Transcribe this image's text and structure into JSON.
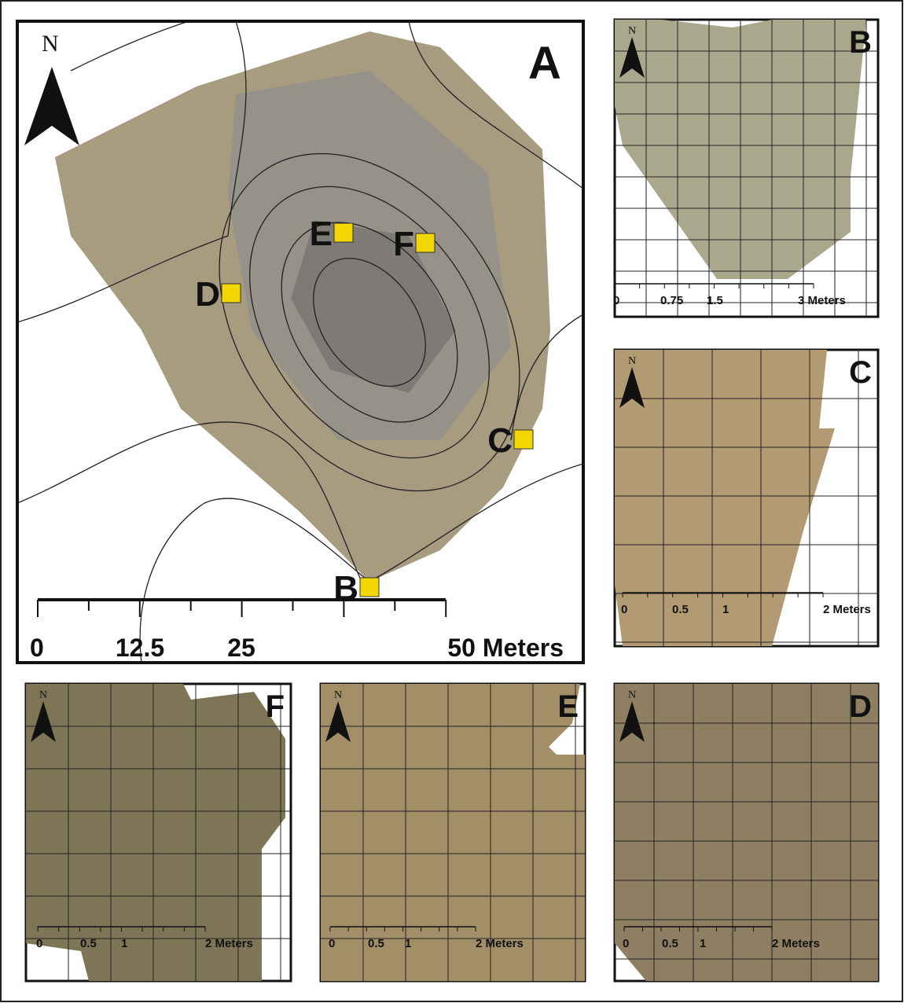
{
  "panels": [
    {
      "letter": "A",
      "north": "N",
      "scale": [
        "0",
        "12.5",
        "25",
        "50 Meters"
      ],
      "sites": [
        "D",
        "E",
        "F",
        "C",
        "B"
      ]
    },
    {
      "letter": "B",
      "north": "N",
      "scale": [
        "0",
        "0.75",
        "1.5",
        "3 Meters"
      ]
    },
    {
      "letter": "C",
      "north": "N",
      "scale": [
        "0",
        "0.5",
        "1",
        "2 Meters"
      ]
    },
    {
      "letter": "F",
      "north": "N",
      "scale": [
        "0",
        "0.5",
        "1",
        "2 Meters"
      ]
    },
    {
      "letter": "E",
      "north": "N",
      "scale": [
        "0",
        "0.5",
        "1",
        "2 Meters"
      ]
    },
    {
      "letter": "D",
      "north": "N",
      "scale": [
        "0",
        "0.5",
        "1",
        "2 Meters"
      ]
    }
  ]
}
